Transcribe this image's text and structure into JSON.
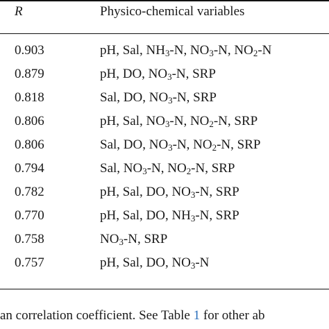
{
  "table": {
    "header": {
      "r_label": "R",
      "vars_label": "Physico-chemical variables"
    },
    "rows": [
      {
        "r": "0.903",
        "vars": [
          "pH, Sal, NH",
          "3",
          "-N, NO",
          "3",
          "-N, NO",
          "2",
          "-N"
        ]
      },
      {
        "r": "0.879",
        "vars": [
          "pH, DO, NO",
          "3",
          "-N, SRP"
        ]
      },
      {
        "r": "0.818",
        "vars": [
          "Sal, DO, NO",
          "3",
          "-N, SRP"
        ]
      },
      {
        "r": "0.806",
        "vars": [
          "pH, Sal, NO",
          "3",
          "-N, NO",
          "2",
          "-N, SRP"
        ]
      },
      {
        "r": "0.806",
        "vars": [
          "Sal, DO, NO",
          "3",
          "-N, NO",
          "2",
          "-N, SRP"
        ]
      },
      {
        "r": "0.794",
        "vars": [
          "Sal, NO",
          "3",
          "-N, NO",
          "2",
          "-N, SRP"
        ]
      },
      {
        "r": "0.782",
        "vars": [
          "pH, Sal, DO, NO",
          "3",
          "-N, SRP"
        ]
      },
      {
        "r": "0.770",
        "vars": [
          "pH, Sal, DO, NH",
          "3",
          "-N, SRP"
        ]
      },
      {
        "r": "0.758",
        "vars": [
          "NO",
          "3",
          "-N, SRP"
        ]
      },
      {
        "r": "0.757",
        "vars": [
          "pH, Sal, DO, NO",
          "3",
          "-N"
        ]
      }
    ]
  },
  "footnote": {
    "text_before": "an correlation coefficient. See Table ",
    "ref": "1",
    "text_after": " for other ab"
  }
}
